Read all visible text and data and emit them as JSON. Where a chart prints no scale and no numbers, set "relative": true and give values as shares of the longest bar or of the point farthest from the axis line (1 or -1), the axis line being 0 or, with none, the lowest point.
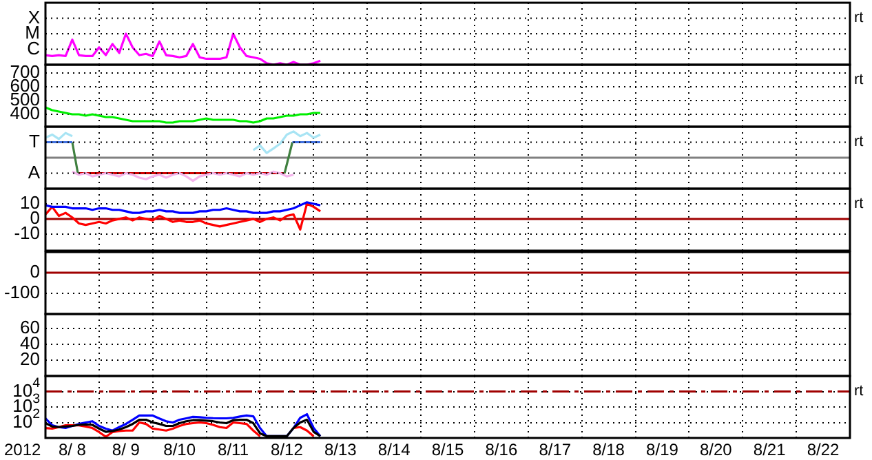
{
  "chart_data": [
    {
      "type": "line",
      "annotations": [
        "rt",
        "X",
        "M",
        "C"
      ],
      "relative": true,
      "grid": true,
      "tick_labels": "y",
      "xlim": [
        "2012-08-08T00:00",
        "2012-08-23T00:00"
      ],
      "xticks": [
        {
          "value": "2012-08-08T00:00",
          "label": null
        },
        {
          "value": "2012-08-09T00:00",
          "label": null
        },
        {
          "value": "2012-08-10T00:00",
          "label": null
        },
        {
          "value": "2012-08-11T00:00",
          "label": null
        },
        {
          "value": "2012-08-12T00:00",
          "label": null
        },
        {
          "value": "2012-08-13T00:00",
          "label": null
        },
        {
          "value": "2012-08-14T00:00",
          "label": null
        },
        {
          "value": "2012-08-15T00:00",
          "label": null
        },
        {
          "value": "2012-08-16T00:00",
          "label": null
        },
        {
          "value": "2012-08-17T00:00",
          "label": null
        },
        {
          "value": "2012-08-18T00:00",
          "label": null
        },
        {
          "value": "2012-08-19T00:00",
          "label": null
        },
        {
          "value": "2012-08-20T00:00",
          "label": null
        },
        {
          "value": "2012-08-21T00:00",
          "label": null
        },
        {
          "value": "2012-08-22T00:00",
          "label": null
        },
        {
          "value": "2012-08-23T00:00",
          "label": null
        }
      ],
      "x": [
        "2012-08-08T00:00",
        "2012-08-08T03:00",
        "2012-08-08T06:00",
        "2012-08-08T09:00",
        "2012-08-08T12:00",
        "2012-08-08T15:00",
        "2012-08-08T18:00",
        "2012-08-08T21:00",
        "2012-08-09T00:00",
        "2012-08-09T03:00",
        "2012-08-09T06:00",
        "2012-08-09T09:00",
        "2012-08-09T12:00",
        "2012-08-09T15:00",
        "2012-08-09T18:00",
        "2012-08-09T21:00",
        "2012-08-10T00:00",
        "2012-08-10T03:00",
        "2012-08-10T06:00",
        "2012-08-10T09:00",
        "2012-08-10T12:00",
        "2012-08-10T15:00",
        "2012-08-10T18:00",
        "2012-08-10T21:00",
        "2012-08-11T00:00",
        "2012-08-11T03:00",
        "2012-08-11T06:00",
        "2012-08-11T09:00",
        "2012-08-11T12:00",
        "2012-08-11T15:00",
        "2012-08-11T18:00",
        "2012-08-11T21:00",
        "2012-08-12T00:00",
        "2012-08-12T03:00",
        "2012-08-12T06:00",
        "2012-08-12T09:00",
        "2012-08-12T12:00",
        "2012-08-12T15:00",
        "2012-08-12T18:00",
        "2012-08-12T21:00",
        "2012-08-13T00:00",
        "2012-08-13T03:00"
      ],
      "series": [
        {
          "color": "#ff00ff",
          "values": [
            0.31,
            0.28,
            0.31,
            0.28,
            0.81,
            0.31,
            0.28,
            0.28,
            0.56,
            0.31,
            0.67,
            0.38,
            1,
            0.56,
            0.31,
            0.35,
            0.28,
            0.75,
            0.31,
            0.28,
            0.24,
            0.28,
            0.67,
            0.24,
            0.19,
            0.19,
            0.19,
            0.24,
            1,
            0.56,
            0.28,
            0.24,
            0.19,
            0.05,
            0,
            0.05,
            0,
            0.09,
            0,
            0,
            0.05,
            0.13
          ]
        }
      ]
    },
    {
      "type": "line",
      "annotations": [
        "rt"
      ],
      "grid": true,
      "tick_labels": "y",
      "xlim": [
        "2012-08-08T00:00",
        "2012-08-23T00:00"
      ],
      "xticks": [
        {
          "value": "2012-08-08T00:00",
          "label": null
        },
        {
          "value": "2012-08-09T00:00",
          "label": null
        },
        {
          "value": "2012-08-10T00:00",
          "label": null
        },
        {
          "value": "2012-08-11T00:00",
          "label": null
        },
        {
          "value": "2012-08-12T00:00",
          "label": null
        },
        {
          "value": "2012-08-13T00:00",
          "label": null
        },
        {
          "value": "2012-08-14T00:00",
          "label": null
        },
        {
          "value": "2012-08-15T00:00",
          "label": null
        },
        {
          "value": "2012-08-16T00:00",
          "label": null
        },
        {
          "value": "2012-08-17T00:00",
          "label": null
        },
        {
          "value": "2012-08-18T00:00",
          "label": null
        },
        {
          "value": "2012-08-19T00:00",
          "label": null
        },
        {
          "value": "2012-08-20T00:00",
          "label": null
        },
        {
          "value": "2012-08-21T00:00",
          "label": null
        },
        {
          "value": "2012-08-22T00:00",
          "label": null
        },
        {
          "value": "2012-08-23T00:00",
          "label": null
        }
      ],
      "ylim": [
        310,
        760
      ],
      "yticks": [
        400,
        500,
        600,
        700
      ],
      "x": [
        "2012-08-08T00:00",
        "2012-08-08T03:00",
        "2012-08-08T06:00",
        "2012-08-08T09:00",
        "2012-08-08T12:00",
        "2012-08-08T15:00",
        "2012-08-08T18:00",
        "2012-08-08T21:00",
        "2012-08-09T00:00",
        "2012-08-09T03:00",
        "2012-08-09T06:00",
        "2012-08-09T09:00",
        "2012-08-09T12:00",
        "2012-08-09T15:00",
        "2012-08-09T18:00",
        "2012-08-09T21:00",
        "2012-08-10T00:00",
        "2012-08-10T03:00",
        "2012-08-10T06:00",
        "2012-08-10T09:00",
        "2012-08-10T12:00",
        "2012-08-10T15:00",
        "2012-08-10T18:00",
        "2012-08-10T21:00",
        "2012-08-11T00:00",
        "2012-08-11T03:00",
        "2012-08-11T06:00",
        "2012-08-11T09:00",
        "2012-08-11T12:00",
        "2012-08-11T15:00",
        "2012-08-11T18:00",
        "2012-08-11T21:00",
        "2012-08-12T00:00",
        "2012-08-12T03:00",
        "2012-08-12T06:00",
        "2012-08-12T09:00",
        "2012-08-12T12:00",
        "2012-08-12T15:00",
        "2012-08-12T18:00",
        "2012-08-12T21:00",
        "2012-08-13T00:00",
        "2012-08-13T03:00"
      ],
      "series": [
        {
          "color": "#00ee00",
          "values": [
            450,
            430,
            420,
            410,
            400,
            400,
            390,
            400,
            390,
            380,
            380,
            370,
            360,
            350,
            350,
            350,
            350,
            350,
            340,
            340,
            350,
            350,
            350,
            360,
            370,
            360,
            360,
            360,
            360,
            350,
            350,
            340,
            350,
            370,
            370,
            380,
            390,
            390,
            400,
            400,
            410,
            410
          ]
        }
      ]
    },
    {
      "type": "line",
      "annotations": [
        "rt",
        "T",
        "A"
      ],
      "relative": true,
      "grid": true,
      "tick_labels": "y",
      "xlim": [
        "2012-08-08T00:00",
        "2012-08-23T00:00"
      ],
      "xticks": [
        {
          "value": "2012-08-08T00:00",
          "label": null
        },
        {
          "value": "2012-08-09T00:00",
          "label": null
        },
        {
          "value": "2012-08-10T00:00",
          "label": null
        },
        {
          "value": "2012-08-11T00:00",
          "label": null
        },
        {
          "value": "2012-08-12T00:00",
          "label": null
        },
        {
          "value": "2012-08-13T00:00",
          "label": null
        },
        {
          "value": "2012-08-14T00:00",
          "label": null
        },
        {
          "value": "2012-08-15T00:00",
          "label": null
        },
        {
          "value": "2012-08-16T00:00",
          "label": null
        },
        {
          "value": "2012-08-17T00:00",
          "label": null
        },
        {
          "value": "2012-08-18T00:00",
          "label": null
        },
        {
          "value": "2012-08-19T00:00",
          "label": null
        },
        {
          "value": "2012-08-20T00:00",
          "label": null
        },
        {
          "value": "2012-08-21T00:00",
          "label": null
        },
        {
          "value": "2012-08-22T00:00",
          "label": null
        },
        {
          "value": "2012-08-23T00:00",
          "label": null
        }
      ],
      "ref_lines": [
        {
          "axis": "y",
          "value": 0,
          "color": "#808080"
        }
      ],
      "series": [
        {
          "color": "#a8e4f4",
          "x": [
            "2012-08-08T00:00",
            "2012-08-08T03:00",
            "2012-08-08T06:00",
            "2012-08-08T09:00",
            "2012-08-08T12:00",
            "2012-08-10T00:00",
            "2012-08-11T21:00",
            "2012-08-12T00:00",
            "2012-08-12T03:00",
            "2012-08-12T06:00",
            "2012-08-12T09:00",
            "2012-08-12T12:00",
            "2012-08-12T15:00",
            "2012-08-12T18:00",
            "2012-08-12T21:00",
            "2012-08-13T00:00",
            "2012-08-13T03:00"
          ],
          "values": [
            0.76,
            0.88,
            0.71,
            0.94,
            0.82,
            null,
            0.29,
            0.47,
            0.18,
            0.35,
            0.53,
            0.88,
            1,
            0.82,
            0.94,
            0.76,
            0.88
          ]
        },
        {
          "color": "#f4b4ec",
          "x": [
            "2012-08-08T12:00",
            "2012-08-08T15:00",
            "2012-08-08T18:00",
            "2012-08-08T21:00",
            "2012-08-09T00:00",
            "2012-08-09T03:00",
            "2012-08-09T06:00",
            "2012-08-09T09:00",
            "2012-08-09T12:00",
            "2012-08-09T15:00",
            "2012-08-09T18:00",
            "2012-08-09T21:00",
            "2012-08-10T00:00",
            "2012-08-10T03:00",
            "2012-08-10T06:00",
            "2012-08-10T09:00",
            "2012-08-10T12:00",
            "2012-08-10T15:00",
            "2012-08-10T18:00",
            "2012-08-10T21:00",
            "2012-08-11T00:00",
            "2012-08-11T03:00",
            "2012-08-11T06:00",
            "2012-08-11T09:00",
            "2012-08-11T12:00",
            "2012-08-11T15:00",
            "2012-08-11T18:00",
            "2012-08-11T21:00",
            "2012-08-12T00:00",
            "2012-08-12T03:00",
            "2012-08-12T06:00",
            "2012-08-12T09:00",
            "2012-08-12T12:00",
            "2012-08-12T15:00"
          ],
          "values": [
            -0.53,
            -0.65,
            -0.59,
            -0.71,
            -0.65,
            -0.59,
            -0.65,
            -0.71,
            -0.59,
            -0.65,
            -0.76,
            -0.82,
            -0.71,
            -0.65,
            -0.76,
            -0.65,
            -0.59,
            -0.71,
            -0.88,
            -0.71,
            -0.65,
            -0.59,
            -0.65,
            -0.59,
            -0.65,
            -0.71,
            -0.59,
            -0.65,
            -0.59,
            -0.65,
            -0.53,
            -0.59,
            -0.71,
            -0.65
          ]
        },
        {
          "color": "#4070e0",
          "x": [
            "2012-08-08T00:00",
            "2012-08-08T12:00",
            "2012-08-10T12:00",
            "2012-08-12T14:30",
            "2012-08-13T03:00"
          ],
          "values": [
            0.59,
            0.59,
            null,
            0.59,
            0.59
          ]
        },
        {
          "color": "#408040",
          "x": [
            "2012-08-08T12:00",
            "2012-08-08T14:30",
            "2012-08-10T12:00",
            "2012-08-12T11:00",
            "2012-08-12T14:30"
          ],
          "values": [
            0.59,
            -0.59,
            null,
            -0.59,
            0.59
          ]
        },
        {
          "color": "#d00000",
          "x": [
            "2012-08-08T14:30",
            "2012-08-12T11:00"
          ],
          "values": [
            -0.59,
            -0.59
          ]
        }
      ]
    },
    {
      "type": "line",
      "annotations": [
        "rt"
      ],
      "grid": true,
      "tick_labels": "y",
      "xlim": [
        "2012-08-08T00:00",
        "2012-08-23T00:00"
      ],
      "xticks": [
        {
          "value": "2012-08-08T00:00",
          "label": null
        },
        {
          "value": "2012-08-09T00:00",
          "label": null
        },
        {
          "value": "2012-08-10T00:00",
          "label": null
        },
        {
          "value": "2012-08-11T00:00",
          "label": null
        },
        {
          "value": "2012-08-12T00:00",
          "label": null
        },
        {
          "value": "2012-08-13T00:00",
          "label": null
        },
        {
          "value": "2012-08-14T00:00",
          "label": null
        },
        {
          "value": "2012-08-15T00:00",
          "label": null
        },
        {
          "value": "2012-08-16T00:00",
          "label": null
        },
        {
          "value": "2012-08-17T00:00",
          "label": null
        },
        {
          "value": "2012-08-18T00:00",
          "label": null
        },
        {
          "value": "2012-08-19T00:00",
          "label": null
        },
        {
          "value": "2012-08-20T00:00",
          "label": null
        },
        {
          "value": "2012-08-21T00:00",
          "label": null
        },
        {
          "value": "2012-08-22T00:00",
          "label": null
        },
        {
          "value": "2012-08-23T00:00",
          "label": null
        }
      ],
      "ylim": [
        -21,
        20
      ],
      "yticks": [
        10,
        0,
        -10
      ],
      "ref_lines": [
        {
          "axis": "y",
          "value": 0,
          "color": "#a00000"
        }
      ],
      "x": [
        "2012-08-08T00:00",
        "2012-08-08T03:00",
        "2012-08-08T06:00",
        "2012-08-08T09:00",
        "2012-08-08T12:00",
        "2012-08-08T15:00",
        "2012-08-08T18:00",
        "2012-08-08T21:00",
        "2012-08-09T00:00",
        "2012-08-09T03:00",
        "2012-08-09T06:00",
        "2012-08-09T09:00",
        "2012-08-09T12:00",
        "2012-08-09T15:00",
        "2012-08-09T18:00",
        "2012-08-09T21:00",
        "2012-08-10T00:00",
        "2012-08-10T03:00",
        "2012-08-10T06:00",
        "2012-08-10T09:00",
        "2012-08-10T12:00",
        "2012-08-10T15:00",
        "2012-08-10T18:00",
        "2012-08-10T21:00",
        "2012-08-11T00:00",
        "2012-08-11T03:00",
        "2012-08-11T06:00",
        "2012-08-11T09:00",
        "2012-08-11T12:00",
        "2012-08-11T15:00",
        "2012-08-11T18:00",
        "2012-08-11T21:00",
        "2012-08-12T00:00",
        "2012-08-12T03:00",
        "2012-08-12T06:00",
        "2012-08-12T09:00",
        "2012-08-12T12:00",
        "2012-08-12T15:00",
        "2012-08-12T18:00",
        "2012-08-12T21:00",
        "2012-08-13T00:00",
        "2012-08-13T03:00"
      ],
      "series": [
        {
          "color": "#0000ff",
          "values": [
            9,
            8,
            8,
            8,
            7,
            7,
            7,
            6,
            7,
            7,
            6,
            6,
            5,
            4,
            4,
            5,
            5,
            6,
            5,
            5,
            4,
            4,
            4,
            5,
            5,
            6,
            6,
            7,
            6,
            5,
            5,
            4,
            4,
            4,
            5,
            5,
            6,
            7,
            9,
            11,
            10,
            9
          ]
        },
        {
          "color": "#ff0000",
          "values": [
            3,
            8,
            2,
            4,
            1,
            -3,
            -4,
            -3,
            -2,
            -3,
            -1,
            0,
            1,
            -1,
            1,
            0,
            -1,
            2,
            0,
            -2,
            -1,
            -2,
            -2,
            -1,
            -3,
            -4,
            -5,
            -4,
            -3,
            -2,
            -1,
            0,
            -2,
            0,
            1,
            -1,
            2,
            3,
            -7,
            10,
            8,
            5
          ]
        }
      ]
    },
    {
      "type": "line",
      "grid": true,
      "tick_labels": "y",
      "xlim": [
        "2012-08-08T00:00",
        "2012-08-23T00:00"
      ],
      "xticks": [
        {
          "value": "2012-08-08T00:00",
          "label": null
        },
        {
          "value": "2012-08-09T00:00",
          "label": null
        },
        {
          "value": "2012-08-10T00:00",
          "label": null
        },
        {
          "value": "2012-08-11T00:00",
          "label": null
        },
        {
          "value": "2012-08-12T00:00",
          "label": null
        },
        {
          "value": "2012-08-13T00:00",
          "label": null
        },
        {
          "value": "2012-08-14T00:00",
          "label": null
        },
        {
          "value": "2012-08-15T00:00",
          "label": null
        },
        {
          "value": "2012-08-16T00:00",
          "label": null
        },
        {
          "value": "2012-08-17T00:00",
          "label": null
        },
        {
          "value": "2012-08-18T00:00",
          "label": null
        },
        {
          "value": "2012-08-19T00:00",
          "label": null
        },
        {
          "value": "2012-08-20T00:00",
          "label": null
        },
        {
          "value": "2012-08-21T00:00",
          "label": null
        },
        {
          "value": "2012-08-22T00:00",
          "label": null
        },
        {
          "value": "2012-08-23T00:00",
          "label": null
        }
      ],
      "ylim": [
        -200,
        100
      ],
      "yticks": [
        0,
        -100
      ],
      "ref_lines": [
        {
          "axis": "y",
          "value": 0,
          "color": "#a00000"
        }
      ]
    },
    {
      "type": "line",
      "grid": true,
      "tick_labels": "y",
      "xlim": [
        "2012-08-08T00:00",
        "2012-08-23T00:00"
      ],
      "xticks": [
        {
          "value": "2012-08-08T00:00",
          "label": null
        },
        {
          "value": "2012-08-09T00:00",
          "label": null
        },
        {
          "value": "2012-08-10T00:00",
          "label": null
        },
        {
          "value": "2012-08-11T00:00",
          "label": null
        },
        {
          "value": "2012-08-12T00:00",
          "label": null
        },
        {
          "value": "2012-08-13T00:00",
          "label": null
        },
        {
          "value": "2012-08-14T00:00",
          "label": null
        },
        {
          "value": "2012-08-15T00:00",
          "label": null
        },
        {
          "value": "2012-08-16T00:00",
          "label": null
        },
        {
          "value": "2012-08-17T00:00",
          "label": null
        },
        {
          "value": "2012-08-18T00:00",
          "label": null
        },
        {
          "value": "2012-08-19T00:00",
          "label": null
        },
        {
          "value": "2012-08-20T00:00",
          "label": null
        },
        {
          "value": "2012-08-21T00:00",
          "label": null
        },
        {
          "value": "2012-08-22T00:00",
          "label": null
        },
        {
          "value": "2012-08-23T00:00",
          "label": null
        }
      ],
      "ylim": [
        0,
        78
      ],
      "yticks": [
        60,
        40,
        20
      ]
    },
    {
      "type": "line",
      "annotations": [
        "rt"
      ],
      "log": true,
      "grid": true,
      "xlabel": "2012",
      "xlim": [
        "2012-08-08T00:00",
        "2012-08-23T00:00"
      ],
      "xticks": [
        {
          "value": "2012-08-08T00:00",
          "label": null
        },
        {
          "value": "2012-08-09T00:00",
          "label": null
        },
        {
          "value": "2012-08-10T00:00",
          "label": null
        },
        {
          "value": "2012-08-11T00:00",
          "label": null
        },
        {
          "value": "2012-08-12T00:00",
          "label": null
        },
        {
          "value": "2012-08-13T00:00",
          "label": null
        },
        {
          "value": "2012-08-14T00:00",
          "label": null
        },
        {
          "value": "2012-08-15T00:00",
          "label": null
        },
        {
          "value": "2012-08-16T00:00",
          "label": null
        },
        {
          "value": "2012-08-17T00:00",
          "label": null
        },
        {
          "value": "2012-08-18T00:00",
          "label": null
        },
        {
          "value": "2012-08-19T00:00",
          "label": null
        },
        {
          "value": "2012-08-20T00:00",
          "label": null
        },
        {
          "value": "2012-08-21T00:00",
          "label": null
        },
        {
          "value": "2012-08-22T00:00",
          "label": null
        },
        {
          "value": "2012-08-23T00:00",
          "label": null
        },
        {
          "value": "2012-08-08T12:00",
          "label": "8/ 8"
        },
        {
          "value": "2012-08-09T12:00",
          "label": "8/ 9"
        },
        {
          "value": "2012-08-10T12:00",
          "label": "8/10"
        },
        {
          "value": "2012-08-11T12:00",
          "label": "8/11"
        },
        {
          "value": "2012-08-12T12:00",
          "label": "8/12"
        },
        {
          "value": "2012-08-13T12:00",
          "label": "8/13"
        },
        {
          "value": "2012-08-14T12:00",
          "label": "8/14"
        },
        {
          "value": "2012-08-15T12:00",
          "label": "8/15"
        },
        {
          "value": "2012-08-16T12:00",
          "label": "8/16"
        },
        {
          "value": "2012-08-17T12:00",
          "label": "8/17"
        },
        {
          "value": "2012-08-18T12:00",
          "label": "8/18"
        },
        {
          "value": "2012-08-19T12:00",
          "label": "8/19"
        },
        {
          "value": "2012-08-20T12:00",
          "label": "8/20"
        },
        {
          "value": "2012-08-21T12:00",
          "label": "8/21"
        },
        {
          "value": "2012-08-22T12:00",
          "label": "8/22"
        }
      ],
      "ylim": [
        10,
        100000
      ],
      "yticks": [
        {
          "value": 100,
          "label": "10$^{2}$"
        },
        {
          "value": 1000,
          "label": "10$^{3}$"
        },
        {
          "value": 10000,
          "label": "10$^{4}$"
        }
      ],
      "ref_lines": [
        {
          "axis": "y",
          "value": 10000,
          "color": "#a00000",
          "line_style": "dashed"
        }
      ],
      "x": [
        "2012-08-08T00:00",
        "2012-08-08T03:00",
        "2012-08-08T06:00",
        "2012-08-08T09:00",
        "2012-08-08T12:00",
        "2012-08-08T15:00",
        "2012-08-08T18:00",
        "2012-08-08T21:00",
        "2012-08-09T00:00",
        "2012-08-09T03:00",
        "2012-08-09T06:00",
        "2012-08-09T09:00",
        "2012-08-09T12:00",
        "2012-08-09T15:00",
        "2012-08-09T18:00",
        "2012-08-09T21:00",
        "2012-08-10T00:00",
        "2012-08-10T03:00",
        "2012-08-10T06:00",
        "2012-08-10T09:00",
        "2012-08-10T12:00",
        "2012-08-10T15:00",
        "2012-08-10T18:00",
        "2012-08-10T21:00",
        "2012-08-11T00:00",
        "2012-08-11T03:00",
        "2012-08-11T06:00",
        "2012-08-11T09:00",
        "2012-08-11T12:00",
        "2012-08-11T15:00",
        "2012-08-11T18:00",
        "2012-08-11T21:00",
        "2012-08-12T00:00",
        "2012-08-12T03:00",
        "2012-08-12T06:00",
        "2012-08-12T09:00",
        "2012-08-12T12:00",
        "2012-08-12T15:00",
        "2012-08-12T18:00",
        "2012-08-12T21:00",
        "2012-08-13T00:00",
        "2012-08-13T03:00"
      ],
      "series": [
        {
          "color": "#000000",
          "values": [
            90,
            55,
            50,
            55,
            60,
            70,
            75,
            70,
            40,
            25,
            28,
            35,
            50,
            80,
            150,
            150,
            100,
            80,
            60,
            60,
            90,
            120,
            140,
            140,
            130,
            120,
            100,
            90,
            140,
            150,
            150,
            90,
            20,
            13,
            13,
            13,
            13,
            44,
            100,
            150,
            25,
            13
          ]
        },
        {
          "color": "#ff0000",
          "values": [
            44,
            40,
            50,
            66,
            66,
            66,
            55,
            44,
            24,
            12,
            24,
            28,
            30,
            30,
            100,
            80,
            40,
            35,
            30,
            40,
            60,
            80,
            90,
            100,
            90,
            70,
            50,
            44,
            100,
            90,
            80,
            30,
            13,
            null,
            null,
            null,
            null,
            44,
            50,
            30,
            13,
            null
          ]
        },
        {
          "color": "#0000ff",
          "values": [
            185,
            66,
            50,
            44,
            60,
            80,
            100,
            120,
            60,
            40,
            30,
            50,
            80,
            150,
            280,
            280,
            280,
            180,
            120,
            100,
            150,
            185,
            230,
            220,
            200,
            190,
            185,
            185,
            200,
            240,
            280,
            250,
            44,
            13,
            13,
            13,
            13,
            44,
            200,
            340,
            44,
            13
          ]
        }
      ]
    }
  ]
}
